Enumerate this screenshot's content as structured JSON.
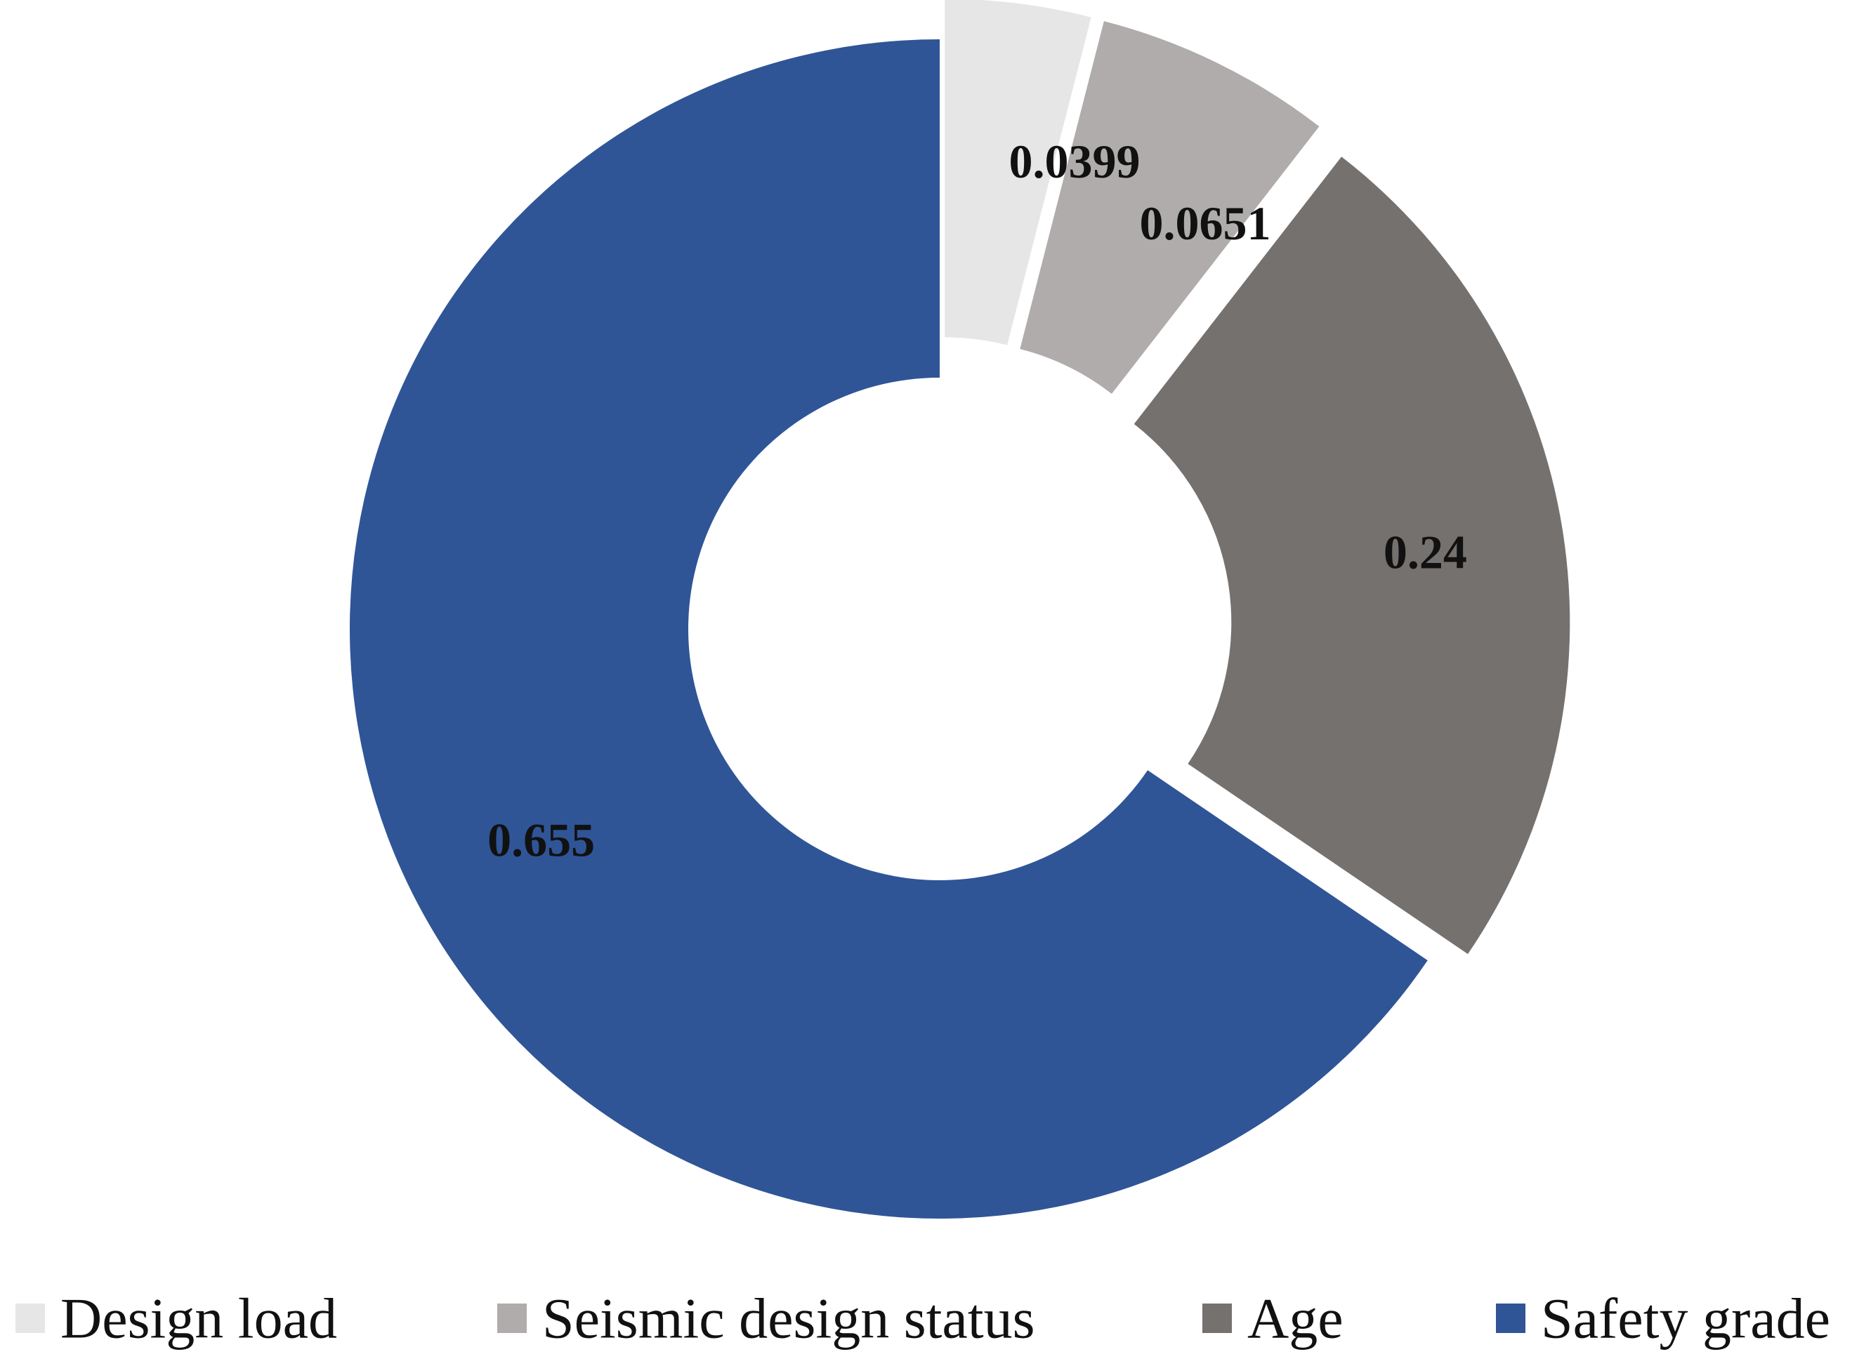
{
  "chart_data": {
    "type": "pie",
    "variant": "donut",
    "title": "",
    "categories": [
      "Design load",
      "Seismic design status",
      "Age",
      "Safety grade"
    ],
    "values": [
      0.0399,
      0.0651,
      0.24,
      0.655
    ],
    "labels": [
      "0.0399",
      "0.0651",
      "0.24",
      "0.655"
    ],
    "colors": [
      "#e6e6e6",
      "#afacab",
      "#75716f",
      "#2f5597"
    ],
    "exploded": [
      true,
      true,
      true,
      false
    ],
    "legend_position": "bottom"
  }
}
